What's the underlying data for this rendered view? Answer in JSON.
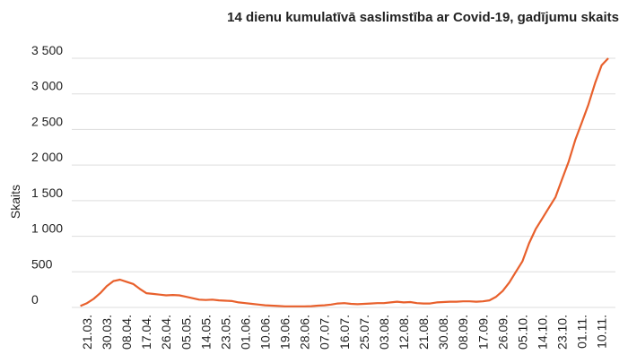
{
  "chart_data": {
    "type": "line",
    "title": "14 dienu kumulatīvā saslimstība ar Covid-19, gadījumu skaits",
    "y_label": "Skaits",
    "categories": [
      null,
      "21.03.",
      null,
      null,
      "30.03.",
      null,
      null,
      "08.04.",
      null,
      null,
      "17.04.",
      null,
      null,
      "26.04.",
      null,
      null,
      "05.05.",
      null,
      null,
      "14.05.",
      null,
      null,
      "23.05.",
      null,
      null,
      "01.06.",
      null,
      null,
      "10.06.",
      null,
      null,
      "19.06.",
      null,
      null,
      "28.06.",
      null,
      null,
      "07.07.",
      null,
      null,
      "16.07.",
      null,
      null,
      "25.07.",
      null,
      null,
      "03.08.",
      null,
      null,
      "12.08.",
      null,
      null,
      "21.08.",
      null,
      null,
      "30.08.",
      null,
      null,
      "08.09.",
      null,
      null,
      "17.09.",
      null,
      null,
      "26.09.",
      null,
      null,
      "05.10.",
      null,
      null,
      "14.10.",
      null,
      null,
      "23.10.",
      null,
      null,
      "01.11.",
      null,
      null,
      "10.11.",
      null
    ],
    "values": [
      20,
      60,
      120,
      200,
      300,
      370,
      390,
      360,
      330,
      260,
      200,
      190,
      180,
      170,
      175,
      170,
      150,
      130,
      110,
      105,
      110,
      100,
      95,
      90,
      70,
      60,
      50,
      40,
      30,
      25,
      20,
      15,
      15,
      15,
      15,
      18,
      25,
      30,
      40,
      55,
      60,
      50,
      45,
      50,
      55,
      60,
      60,
      70,
      80,
      70,
      75,
      60,
      55,
      55,
      70,
      75,
      80,
      80,
      85,
      85,
      80,
      85,
      100,
      150,
      230,
      350,
      500,
      650,
      900,
      1100,
      1250,
      1400,
      1550,
      1800,
      2050,
      2350,
      2600,
      2850,
      3150,
      3400,
      3500
    ],
    "color": "#e8602c",
    "ylim": [
      0,
      3500
    ],
    "yticks": [
      0,
      500,
      {
        "value": 1000,
        "label": "1 000"
      },
      {
        "value": 1500,
        "label": "1 500"
      },
      {
        "value": 2000,
        "label": "2 000"
      },
      {
        "value": 2500,
        "label": "2 500"
      },
      {
        "value": 3000,
        "label": "3 000"
      },
      {
        "value": 3500,
        "label": "3 500"
      }
    ],
    "grid": true
  }
}
